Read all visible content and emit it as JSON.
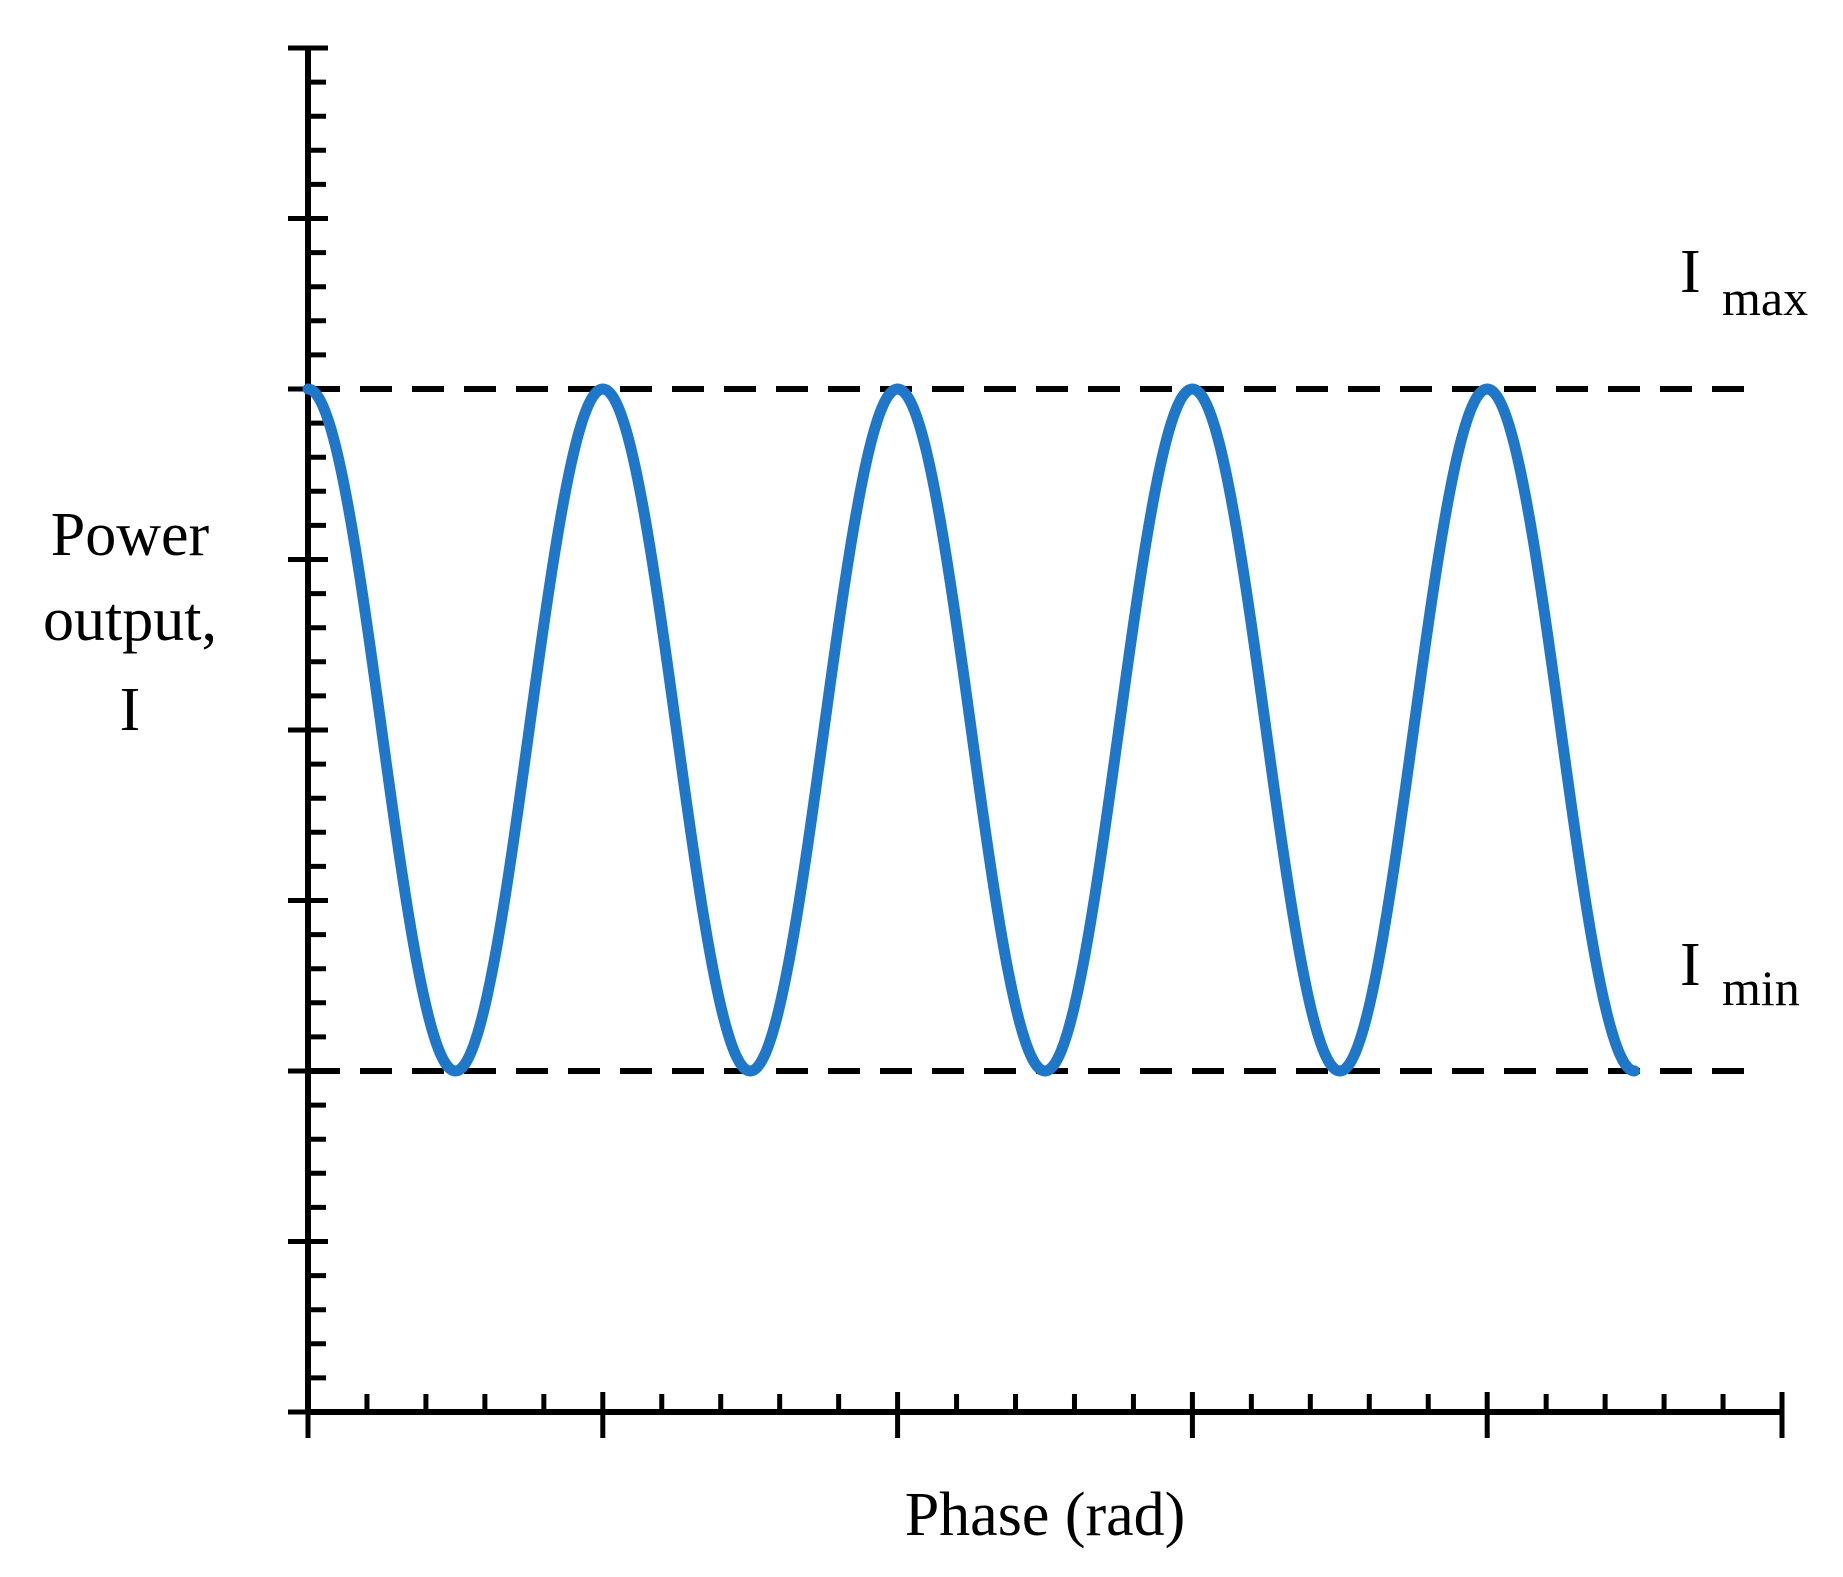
{
  "chart_data": {
    "type": "line",
    "title": "",
    "xlabel": "Phase (rad)",
    "ylabel_lines": [
      "Power",
      "output,",
      "I"
    ],
    "xlim": [
      0,
      25
    ],
    "ylim": [
      -20,
      20
    ],
    "grid": false,
    "legend": "none",
    "x_tick_major_step": 5,
    "x_tick_minor_step": 1,
    "y_tick_major_step": 5,
    "y_tick_minor_step": 1,
    "reference_lines": [
      {
        "name": "max",
        "value": 10,
        "label_main": "I",
        "label_sub": "max",
        "style": "dashed"
      },
      {
        "name": "min",
        "value": -10,
        "label_main": "I",
        "label_sub": "min",
        "style": "dashed"
      }
    ],
    "curve": {
      "function": "cosine",
      "mean": 0,
      "amplitude": 10,
      "period": 5,
      "x_start": 0,
      "x_end": 22.5
    },
    "colors": {
      "curve": "#1f77c9",
      "axes": "#000000",
      "reference_lines": "#000000"
    }
  }
}
